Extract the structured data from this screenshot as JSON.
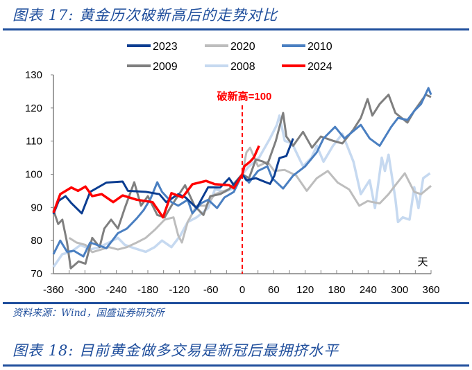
{
  "header": {
    "title": "图表 17:  黄金历次破新高后的走势对比"
  },
  "footer": {
    "source": "资料来源：Wind，国盛证券研究所",
    "next_title": "图表 18:  目前黄金做多交易是新冠后最拥挤水平"
  },
  "chart_data": {
    "type": "line",
    "title": "黄金历次破新高后的走势对比",
    "xlabel": "天",
    "ylabel": "",
    "xlim": [
      -360,
      360
    ],
    "ylim": [
      70,
      130
    ],
    "xticks": [
      "-360",
      "-300",
      "-240",
      "-180",
      "-120",
      "-60",
      "0",
      "60",
      "120",
      "180",
      "240",
      "300",
      "360"
    ],
    "yticks": [
      "70",
      "80",
      "90",
      "100",
      "110",
      "120",
      "130"
    ],
    "annotation": "破新高=100",
    "legend_position": "top",
    "series": [
      {
        "name": "2023",
        "color": "#0b3d91",
        "width": 3,
        "x": [
          -360,
          -350,
          -337,
          -326,
          -306,
          -290,
          -259,
          -228,
          -218,
          -184,
          -158,
          -145,
          -122,
          -108,
          -87,
          -65,
          -42,
          -25,
          -16,
          0,
          8,
          26,
          53,
          61,
          71,
          84,
          97
        ],
        "y": [
          88,
          92,
          93.4,
          91.3,
          88.2,
          94.7,
          97.5,
          97.8,
          95,
          94.7,
          94,
          91.6,
          94,
          93,
          89.8,
          96.1,
          96,
          98.8,
          96.7,
          100,
          98.2,
          98.8,
          97.1,
          99.5,
          104.9,
          105.5,
          110.8
        ]
      },
      {
        "name": "2020",
        "color": "#bdbdbd",
        "width": 3,
        "x": [
          -330,
          -316,
          -299,
          -286,
          -254,
          -237,
          -220,
          -201,
          -184,
          -167,
          -148,
          -131,
          -122,
          -115,
          -104,
          -87,
          -69,
          -52,
          -25,
          0,
          8,
          15,
          30,
          48,
          61,
          81,
          103,
          123,
          142,
          163,
          182,
          204,
          223,
          239,
          262,
          279,
          292,
          310,
          328,
          341,
          360
        ],
        "y": [
          80.8,
          79.4,
          78.7,
          76.5,
          78,
          77.3,
          78,
          79.4,
          80.8,
          83.2,
          86.3,
          87,
          81.5,
          79.4,
          85.6,
          90.5,
          90.5,
          94,
          95.5,
          100,
          106.6,
          108,
          102.4,
          103.8,
          101,
          101.3,
          99.6,
          95,
          98.8,
          101,
          97.5,
          95.4,
          90.5,
          91.9,
          91.2,
          94,
          96.7,
          100.3,
          94.7,
          94,
          96.5
        ]
      },
      {
        "name": "2010",
        "color": "#4a7fc1",
        "width": 3,
        "x": [
          -360,
          -347,
          -334,
          -321,
          -303,
          -290,
          -259,
          -237,
          -220,
          -201,
          -188,
          -175,
          -162,
          -153,
          -135,
          -122,
          -104,
          -95,
          -78,
          -65,
          -48,
          -34,
          -16,
          0,
          13,
          30,
          48,
          57,
          78,
          97,
          120,
          142,
          155,
          177,
          195,
          226,
          243,
          262,
          284,
          297,
          315,
          328,
          341,
          355,
          360
        ],
        "y": [
          75.9,
          80,
          76.6,
          76.9,
          75.2,
          79.4,
          77.7,
          82.2,
          83.6,
          86.7,
          89.2,
          92.6,
          97.6,
          94.7,
          91.6,
          90.5,
          92.3,
          88.2,
          91.3,
          92.3,
          89.8,
          93,
          94.7,
          100,
          97.5,
          101,
          102.4,
          98.8,
          95.7,
          99.6,
          102.4,
          106.6,
          110.8,
          114.3,
          110.8,
          114.9,
          110.8,
          108.6,
          114.3,
          117,
          116.4,
          119.1,
          121.2,
          126,
          124
        ]
      },
      {
        "name": "2009",
        "color": "#7f7f7f",
        "width": 3,
        "x": [
          -360,
          -351,
          -343,
          -334,
          -327,
          -312,
          -299,
          -286,
          -272,
          -263,
          -250,
          -237,
          -224,
          -206,
          -193,
          -180,
          -162,
          -148,
          -135,
          -109,
          -91,
          -74,
          -61,
          -42,
          -25,
          0,
          13,
          26,
          40,
          48,
          64,
          78,
          84,
          97,
          116,
          133,
          150,
          173,
          191,
          212,
          226,
          239,
          248,
          262,
          279,
          292,
          315,
          328,
          350,
          360
        ],
        "y": [
          89.2,
          85,
          86.3,
          79.4,
          71.6,
          73.7,
          73,
          80.8,
          78,
          83.6,
          86.3,
          83.6,
          89.8,
          97.6,
          90.5,
          93.4,
          87.7,
          87,
          90.5,
          96.7,
          90.5,
          87.7,
          93.4,
          94,
          95.5,
          100,
          98.8,
          104.5,
          103.8,
          103,
          110.1,
          118.5,
          111.4,
          108.6,
          112.8,
          108,
          111.4,
          110.1,
          109.3,
          113.5,
          117,
          122.7,
          117.7,
          121.2,
          124,
          118.5,
          115.6,
          119.1,
          124,
          123.3
        ]
      },
      {
        "name": "2008",
        "color": "#c6d9f0",
        "width": 3.5,
        "x": [
          -360,
          -343,
          -326,
          -308,
          -290,
          -272,
          -254,
          -237,
          -224,
          -206,
          -184,
          -167,
          -153,
          -135,
          -118,
          -104,
          -87,
          -65,
          -52,
          -34,
          -16,
          0,
          13,
          32,
          53,
          66,
          71,
          81,
          95,
          108,
          116,
          132,
          142,
          155,
          173,
          191,
          212,
          226,
          243,
          253,
          266,
          272,
          279,
          292,
          297,
          306,
          319,
          328,
          336,
          345,
          358
        ],
        "y": [
          72,
          75.9,
          76.6,
          78.7,
          77.3,
          78,
          79.4,
          80.8,
          78.7,
          77.7,
          76.6,
          78,
          80,
          78,
          81.5,
          85.6,
          87,
          89.8,
          95.5,
          94.7,
          95.8,
          100,
          102.4,
          105,
          110.8,
          114.9,
          117.7,
          110.1,
          109.3,
          105,
          102.4,
          105,
          108.6,
          103.8,
          108.6,
          112.2,
          103.8,
          94,
          98.2,
          89.8,
          105,
          101,
          105.9,
          92.6,
          85.6,
          87,
          86.3,
          96.1,
          89.8,
          98.8,
          100.3
        ]
      },
      {
        "name": "2024",
        "color": "#ff0000",
        "width": 3.5,
        "x": [
          -360,
          -347,
          -326,
          -313,
          -299,
          -286,
          -268,
          -246,
          -228,
          -201,
          -171,
          -151,
          -135,
          -114,
          -95,
          -69,
          -52,
          -25,
          -16,
          0,
          4,
          15,
          22,
          32
        ],
        "y": [
          88.4,
          94,
          96,
          95,
          96.3,
          93.4,
          94,
          91.6,
          93.6,
          92.3,
          91.6,
          87,
          94.3,
          93,
          97,
          98,
          97,
          96.7,
          95.8,
          100,
          102.4,
          103.8,
          105,
          108.6
        ]
      }
    ]
  }
}
